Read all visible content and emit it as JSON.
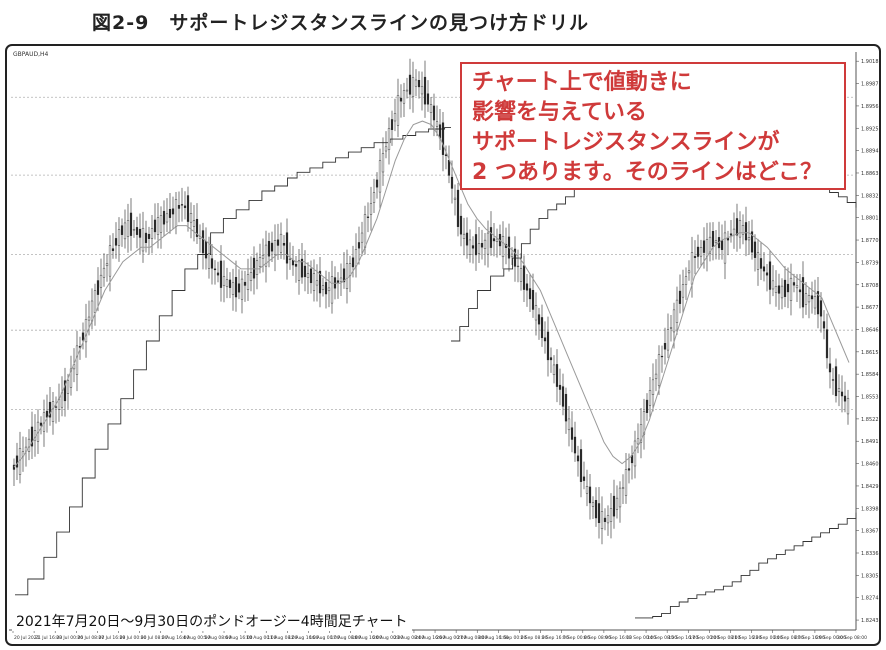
{
  "figure": {
    "title": "図2-9　サポートレジスタンスラインの見つけ方ドリル",
    "symbol_label": "GBPAUD,H4"
  },
  "quiz": {
    "lines": [
      "チャート上で値動きに",
      "影響を与えている",
      "サポートレジスタンスラインが",
      "2 つあります。そのラインはどこ？"
    ]
  },
  "caption": "2021年7月20日〜9月30日のポンドオージー4時間足チャート",
  "colors": {
    "quiz": "#cf3a3a",
    "candle": "#222222",
    "ma": "#9a9a9a",
    "step": "#333333",
    "grid": "#b0b0b0"
  },
  "chart_data": {
    "type": "candlestick",
    "x_labels": [
      "20 Jul 2021",
      "21 Jul 16:00",
      "23 Jul 00:00",
      "26 Jul 08:00",
      "27 Jul 16:00",
      "29 Jul 00:00",
      "30 Jul 08:00",
      "2 Aug 16:00",
      "4 Aug 00:00",
      "5 Aug 08:00",
      "6 Aug 16:00",
      "10 Aug 00:00",
      "11 Aug 08:00",
      "12 Aug 16:00",
      "16 Aug 00:00",
      "17 Aug 08:00",
      "18 Aug 16:00",
      "20 Aug 00:00",
      "23 Aug 08:00",
      "24 Aug 16:00",
      "26 Aug 00:00",
      "27 Aug 08:00",
      "30 Aug 16:00",
      "1 Sep 00:00",
      "2 Sep 08:00",
      "3 Sep 16:00",
      "7 Sep 00:00",
      "8 Sep 08:00",
      "9 Sep 16:00",
      "13 Sep 00:00",
      "14 Sep 08:00",
      "15 Sep 16:00",
      "17 Sep 00:00",
      "20 Sep 08:00",
      "21 Sep 16:00",
      "23 Sep 00:00",
      "24 Sep 08:00",
      "27 Sep 16:00",
      "29 Sep 00:00",
      "30 Sep 08:00"
    ],
    "y_ticks": [
      1.9018,
      1.8987,
      1.8956,
      1.8925,
      1.8894,
      1.8863,
      1.8832,
      1.8801,
      1.877,
      1.8739,
      1.8708,
      1.8677,
      1.8646,
      1.8615,
      1.8584,
      1.8553,
      1.8522,
      1.8491,
      1.846,
      1.8429,
      1.8398,
      1.8367,
      1.8336,
      1.8305,
      1.8274,
      1.8243
    ],
    "ylim": [
      1.8232,
      1.9028
    ],
    "grid_levels": [
      1.8968,
      1.886,
      1.875,
      1.8645,
      1.8535
    ],
    "closes": [
      1.847,
      1.849,
      1.851,
      1.853,
      1.854,
      1.856,
      1.86,
      1.864,
      1.868,
      1.872,
      1.875,
      1.878,
      1.879,
      1.878,
      1.877,
      1.879,
      1.88,
      1.881,
      1.882,
      1.88,
      1.877,
      1.874,
      1.872,
      1.871,
      1.87,
      1.871,
      1.873,
      1.875,
      1.876,
      1.877,
      1.874,
      1.873,
      1.872,
      1.871,
      1.87,
      1.871,
      1.872,
      1.874,
      1.878,
      1.882,
      1.887,
      1.892,
      1.896,
      1.898,
      1.899,
      1.897,
      1.894,
      1.89,
      1.884,
      1.878,
      1.876,
      1.876,
      1.877,
      1.877,
      1.876,
      1.874,
      1.871,
      1.868,
      1.864,
      1.86,
      1.856,
      1.851,
      1.846,
      1.842,
      1.839,
      1.838,
      1.84,
      1.843,
      1.847,
      1.851,
      1.856,
      1.86,
      1.864,
      1.868,
      1.872,
      1.875,
      1.876,
      1.877,
      1.876,
      1.878,
      1.879,
      1.877,
      1.874,
      1.872,
      1.87,
      1.87,
      1.871,
      1.869,
      1.869,
      1.867,
      1.858,
      1.856,
      1.854
    ],
    "ma_values": [
      1.8455,
      1.847,
      1.849,
      1.851,
      1.853,
      1.855,
      1.858,
      1.861,
      1.864,
      1.867,
      1.87,
      1.872,
      1.874,
      1.875,
      1.876,
      1.876,
      1.877,
      1.878,
      1.879,
      1.879,
      1.878,
      1.877,
      1.876,
      1.875,
      1.874,
      1.873,
      1.873,
      1.873,
      1.874,
      1.875,
      1.875,
      1.874,
      1.874,
      1.873,
      1.872,
      1.871,
      1.871,
      1.872,
      1.874,
      1.877,
      1.88,
      1.884,
      1.888,
      1.891,
      1.893,
      1.8935,
      1.893,
      1.891,
      1.888,
      1.885,
      1.882,
      1.88,
      1.8785,
      1.8775,
      1.8765,
      1.8755,
      1.874,
      1.872,
      1.87,
      1.867,
      1.864,
      1.861,
      1.858,
      1.855,
      1.852,
      1.849,
      1.847,
      1.846,
      1.847,
      1.849,
      1.852,
      1.856,
      1.86,
      1.864,
      1.868,
      1.872,
      1.874,
      1.876,
      1.877,
      1.8775,
      1.878,
      1.878,
      1.877,
      1.876,
      1.8745,
      1.873,
      1.872,
      1.871,
      1.87,
      1.869,
      1.866,
      1.863,
      1.86
    ],
    "step_line_1": [
      [
        0,
        1.8278
      ],
      [
        4,
        1.83
      ],
      [
        9,
        1.833
      ],
      [
        13,
        1.8365
      ],
      [
        17,
        1.84
      ],
      [
        21,
        1.844
      ],
      [
        25,
        1.848
      ],
      [
        29,
        1.8515
      ],
      [
        33,
        1.855
      ],
      [
        37,
        1.859
      ],
      [
        41,
        1.863
      ],
      [
        45,
        1.8665
      ],
      [
        49,
        1.87
      ],
      [
        53,
        1.873
      ],
      [
        57,
        1.875
      ],
      [
        61,
        1.878
      ],
      [
        65,
        1.88
      ],
      [
        69,
        1.8812
      ],
      [
        73,
        1.8825
      ],
      [
        77,
        1.8838
      ],
      [
        81,
        1.8845
      ],
      [
        85,
        1.8856
      ],
      [
        88,
        1.8864
      ],
      [
        92,
        1.887
      ],
      [
        96,
        1.8878
      ],
      [
        100,
        1.8884
      ],
      [
        104,
        1.8892
      ],
      [
        108,
        1.8898
      ],
      [
        112,
        1.8905
      ],
      [
        117,
        1.891
      ],
      [
        121,
        1.8915
      ],
      [
        125,
        1.892
      ],
      [
        129,
        1.8924
      ],
      [
        134,
        1.8926
      ],
      [
        136,
        1.8926
      ]
    ],
    "step_line_2": [
      [
        0,
        1.863
      ],
      [
        2,
        1.865
      ],
      [
        4,
        1.8675
      ],
      [
        6,
        1.87
      ],
      [
        9,
        1.872
      ],
      [
        12,
        1.873
      ],
      [
        14,
        1.8745
      ],
      [
        16,
        1.8765
      ],
      [
        18,
        1.8785
      ],
      [
        20,
        1.88
      ],
      [
        22,
        1.8812
      ],
      [
        24,
        1.882
      ],
      [
        26,
        1.883
      ],
      [
        28,
        1.884
      ],
      [
        30,
        1.885
      ],
      [
        32,
        1.886
      ],
      [
        34,
        1.887
      ],
      [
        36,
        1.8878
      ],
      [
        38,
        1.8884
      ],
      [
        40,
        1.8892
      ],
      [
        42,
        1.8896
      ],
      [
        44,
        1.8903
      ],
      [
        46,
        1.891
      ],
      [
        48,
        1.8915
      ],
      [
        50,
        1.892
      ],
      [
        52,
        1.8924
      ],
      [
        54,
        1.8926
      ],
      [
        56,
        1.8926
      ],
      [
        58,
        1.892
      ],
      [
        60,
        1.8915
      ],
      [
        62,
        1.891
      ],
      [
        64,
        1.8905
      ],
      [
        66,
        1.89
      ],
      [
        68,
        1.8895
      ],
      [
        70,
        1.889
      ],
      [
        72,
        1.8885
      ],
      [
        74,
        1.8878
      ],
      [
        76,
        1.887
      ],
      [
        78,
        1.8862
      ],
      [
        80,
        1.8856
      ],
      [
        82,
        1.885
      ],
      [
        84,
        1.8842
      ],
      [
        86,
        1.8836
      ],
      [
        88,
        1.883
      ],
      [
        90,
        1.8822
      ],
      [
        92,
        1.8815
      ]
    ],
    "step_line_3": [
      [
        0,
        1.8246
      ],
      [
        2,
        1.8248
      ],
      [
        3,
        1.8252
      ],
      [
        4,
        1.8262
      ],
      [
        5,
        1.8268
      ],
      [
        6,
        1.8273
      ],
      [
        7,
        1.8278
      ],
      [
        8,
        1.8282
      ],
      [
        9,
        1.8285
      ],
      [
        10,
        1.829
      ],
      [
        11,
        1.8296
      ],
      [
        12,
        1.8305
      ],
      [
        13,
        1.8312
      ],
      [
        14,
        1.8322
      ],
      [
        15,
        1.8328
      ],
      [
        16,
        1.8334
      ],
      [
        17,
        1.834
      ],
      [
        18,
        1.8346
      ],
      [
        19,
        1.8352
      ],
      [
        20,
        1.8358
      ],
      [
        21,
        1.8364
      ],
      [
        22,
        1.837
      ],
      [
        23,
        1.8376
      ],
      [
        24,
        1.8384
      ],
      [
        25,
        1.8392
      ]
    ]
  }
}
